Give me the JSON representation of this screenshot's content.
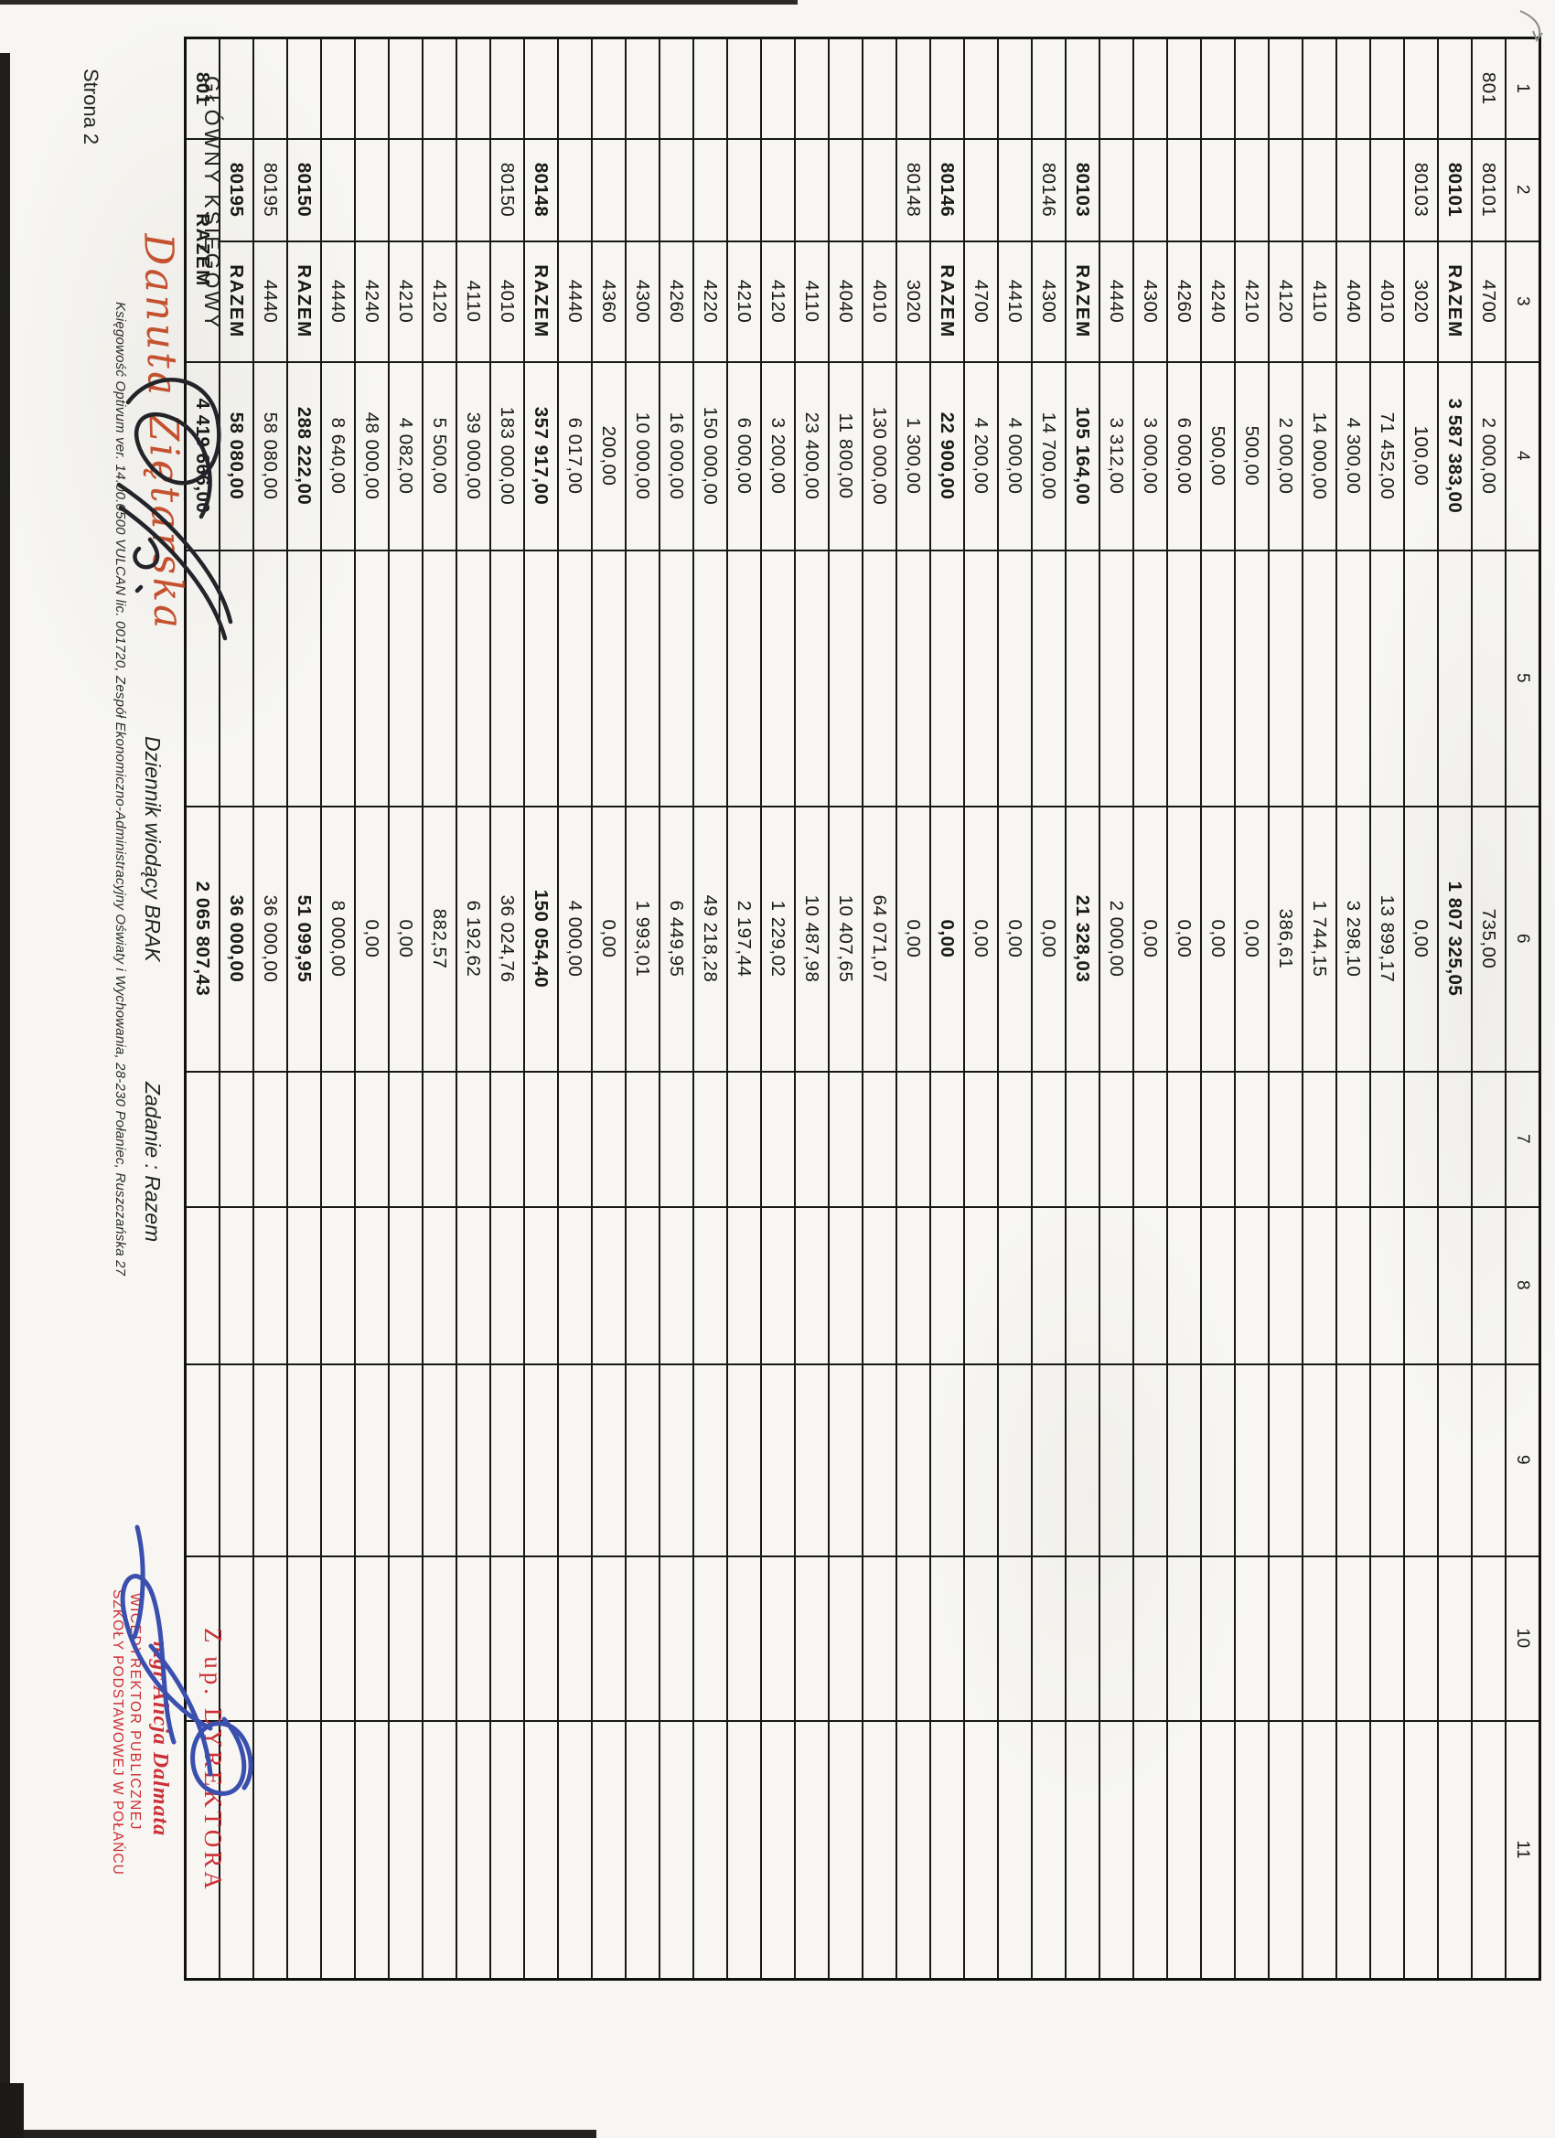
{
  "document": {
    "page_label": "Strona 2",
    "table": {
      "column_headers": [
        "1",
        "2",
        "3",
        "4",
        "5",
        "6",
        "7",
        "8",
        "9",
        "10",
        "11"
      ],
      "rows": [
        {
          "c1": "801",
          "c2": "80101",
          "c3": "4700",
          "plan": "2 000,00",
          "wyk": "735,00",
          "bold": false,
          "merge": false
        },
        {
          "c1": "",
          "c2": "80101",
          "c3": "RAZEM",
          "plan": "3 587 383,00",
          "wyk": "1 807 325,05",
          "bold": true,
          "merge": false
        },
        {
          "c1": "",
          "c2": "80103",
          "c3": "3020",
          "plan": "100,00",
          "wyk": "0,00",
          "bold": false,
          "merge": false
        },
        {
          "c1": "",
          "c2": "",
          "c3": "4010",
          "plan": "71 452,00",
          "wyk": "13 899,17",
          "bold": false,
          "merge": false
        },
        {
          "c1": "",
          "c2": "",
          "c3": "4040",
          "plan": "4 300,00",
          "wyk": "3 298,10",
          "bold": false,
          "merge": false
        },
        {
          "c1": "",
          "c2": "",
          "c3": "4110",
          "plan": "14 000,00",
          "wyk": "1 744,15",
          "bold": false,
          "merge": false
        },
        {
          "c1": "",
          "c2": "",
          "c3": "4120",
          "plan": "2 000,00",
          "wyk": "386,61",
          "bold": false,
          "merge": false
        },
        {
          "c1": "",
          "c2": "",
          "c3": "4210",
          "plan": "500,00",
          "wyk": "0,00",
          "bold": false,
          "merge": false
        },
        {
          "c1": "",
          "c2": "",
          "c3": "4240",
          "plan": "500,00",
          "wyk": "0,00",
          "bold": false,
          "merge": false
        },
        {
          "c1": "",
          "c2": "",
          "c3": "4260",
          "plan": "6 000,00",
          "wyk": "0,00",
          "bold": false,
          "merge": false
        },
        {
          "c1": "",
          "c2": "",
          "c3": "4300",
          "plan": "3 000,00",
          "wyk": "0,00",
          "bold": false,
          "merge": false
        },
        {
          "c1": "",
          "c2": "",
          "c3": "4440",
          "plan": "3 312,00",
          "wyk": "2 000,00",
          "bold": false,
          "merge": false
        },
        {
          "c1": "",
          "c2": "80103",
          "c3": "RAZEM",
          "plan": "105 164,00",
          "wyk": "21 328,03",
          "bold": true,
          "merge": false
        },
        {
          "c1": "",
          "c2": "80146",
          "c3": "4300",
          "plan": "14 700,00",
          "wyk": "0,00",
          "bold": false,
          "merge": false
        },
        {
          "c1": "",
          "c2": "",
          "c3": "4410",
          "plan": "4 000,00",
          "wyk": "0,00",
          "bold": false,
          "merge": false
        },
        {
          "c1": "",
          "c2": "",
          "c3": "4700",
          "plan": "4 200,00",
          "wyk": "0,00",
          "bold": false,
          "merge": false
        },
        {
          "c1": "",
          "c2": "80146",
          "c3": "RAZEM",
          "plan": "22 900,00",
          "wyk": "0,00",
          "bold": true,
          "merge": false
        },
        {
          "c1": "",
          "c2": "80148",
          "c3": "3020",
          "plan": "1 300,00",
          "wyk": "0,00",
          "bold": false,
          "merge": false
        },
        {
          "c1": "",
          "c2": "",
          "c3": "4010",
          "plan": "130 000,00",
          "wyk": "64 071,07",
          "bold": false,
          "merge": false
        },
        {
          "c1": "",
          "c2": "",
          "c3": "4040",
          "plan": "11 800,00",
          "wyk": "10 407,65",
          "bold": false,
          "merge": false
        },
        {
          "c1": "",
          "c2": "",
          "c3": "4110",
          "plan": "23 400,00",
          "wyk": "10 487,98",
          "bold": false,
          "merge": false
        },
        {
          "c1": "",
          "c2": "",
          "c3": "4120",
          "plan": "3 200,00",
          "wyk": "1 229,02",
          "bold": false,
          "merge": false
        },
        {
          "c1": "",
          "c2": "",
          "c3": "4210",
          "plan": "6 000,00",
          "wyk": "2 197,44",
          "bold": false,
          "merge": false
        },
        {
          "c1": "",
          "c2": "",
          "c3": "4220",
          "plan": "150 000,00",
          "wyk": "49 218,28",
          "bold": false,
          "merge": false
        },
        {
          "c1": "",
          "c2": "",
          "c3": "4260",
          "plan": "16 000,00",
          "wyk": "6 449,95",
          "bold": false,
          "merge": false
        },
        {
          "c1": "",
          "c2": "",
          "c3": "4300",
          "plan": "10 000,00",
          "wyk": "1 993,01",
          "bold": false,
          "merge": false
        },
        {
          "c1": "",
          "c2": "",
          "c3": "4360",
          "plan": "200,00",
          "wyk": "0,00",
          "bold": false,
          "merge": false
        },
        {
          "c1": "",
          "c2": "",
          "c3": "4440",
          "plan": "6 017,00",
          "wyk": "4 000,00",
          "bold": false,
          "merge": false
        },
        {
          "c1": "",
          "c2": "80148",
          "c3": "RAZEM",
          "plan": "357 917,00",
          "wyk": "150 054,40",
          "bold": true,
          "merge": false
        },
        {
          "c1": "",
          "c2": "80150",
          "c3": "4010",
          "plan": "183 000,00",
          "wyk": "36 024,76",
          "bold": false,
          "merge": false
        },
        {
          "c1": "",
          "c2": "",
          "c3": "4110",
          "plan": "39 000,00",
          "wyk": "6 192,62",
          "bold": false,
          "merge": false
        },
        {
          "c1": "",
          "c2": "",
          "c3": "4120",
          "plan": "5 500,00",
          "wyk": "882,57",
          "bold": false,
          "merge": false
        },
        {
          "c1": "",
          "c2": "",
          "c3": "4210",
          "plan": "4 082,00",
          "wyk": "0,00",
          "bold": false,
          "merge": false
        },
        {
          "c1": "",
          "c2": "",
          "c3": "4240",
          "plan": "48 000,00",
          "wyk": "0,00",
          "bold": false,
          "merge": false
        },
        {
          "c1": "",
          "c2": "",
          "c3": "4440",
          "plan": "8 640,00",
          "wyk": "8 000,00",
          "bold": false,
          "merge": false
        },
        {
          "c1": "",
          "c2": "80150",
          "c3": "RAZEM",
          "plan": "288 222,00",
          "wyk": "51 099,95",
          "bold": true,
          "merge": false
        },
        {
          "c1": "",
          "c2": "80195",
          "c3": "4440",
          "plan": "58 080,00",
          "wyk": "36 000,00",
          "bold": false,
          "merge": false
        },
        {
          "c1": "",
          "c2": "80195",
          "c3": "RAZEM",
          "plan": "58 080,00",
          "wyk": "36 000,00",
          "bold": true,
          "merge": false
        },
        {
          "c1": "801",
          "c2": "",
          "c3": "RAZEM",
          "plan": "4 419 666,00",
          "wyk": "2 065 807,43",
          "bold": true,
          "merge": true
        }
      ]
    },
    "footer": {
      "chief_accountant_label": "GŁÓWNY KSIĘGOWY",
      "chief_accountant_name": "Danuta Ziętarska",
      "journal_note": "Dziennik wiodący BRAK",
      "task_note": "Zadanie : Razem",
      "credit_line": "Księgowość Optivum ver. 14.00.0500 VULCAN lic. 001720, Zespół Ekonomiczno-Administracyjny Oświaty i Wychowania, 28-230 Połaniec, Ruszczańska 27",
      "page_label": "Strona 2",
      "stamp_line1": "Z up. DYREKTORA",
      "stamp_line2": "mgr Alicja Dalmata",
      "stamp_line3": "WICEDYREKTOR PUBLICZNEJ",
      "stamp_line4": "SZKOŁY PODSTAWOWEJ W POŁAŃCU"
    },
    "colors": {
      "stamp_red": "#cc2f35",
      "signature_red": "#c4512f",
      "ink_blue": "#3b4fae",
      "ink_black": "#23242a"
    }
  }
}
